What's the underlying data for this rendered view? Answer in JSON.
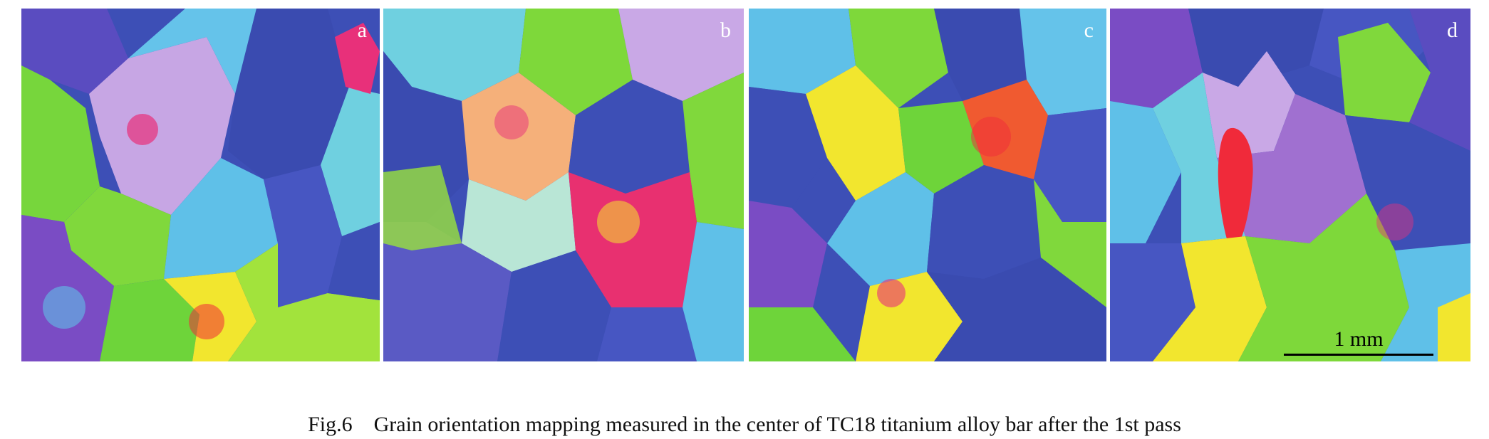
{
  "figure": {
    "panels": [
      {
        "label": "a"
      },
      {
        "label": "b"
      },
      {
        "label": "c"
      },
      {
        "label": "d"
      }
    ],
    "scale_bar": {
      "text": "1 mm"
    },
    "caption": "Fig.6    Grain orientation mapping measured in the center of TC18 titanium alloy bar after the 1st pass"
  },
  "colors": {
    "blue": "#3b4fb8",
    "violet": "#7a4cc4",
    "cyan": "#5fc0e8",
    "green": "#7ed83a",
    "yellow": "#f2e62e",
    "magenta": "#e8307a",
    "red": "#f02a3a",
    "lavender": "#c9a8e6"
  }
}
